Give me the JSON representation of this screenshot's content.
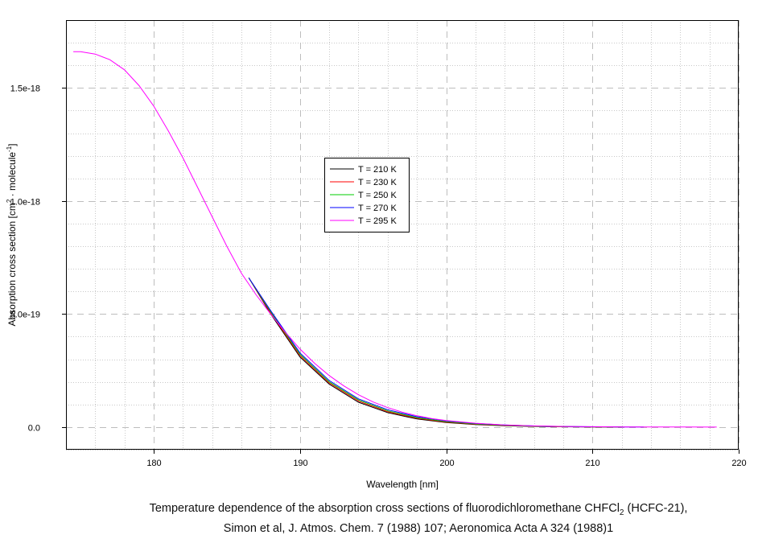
{
  "chart_data": {
    "type": "line",
    "xlabel": "Wavelength [nm]",
    "ylabel_parts": [
      "Absorption cross section [cm",
      "2",
      " · molecule",
      "-1",
      "]"
    ],
    "xlim": [
      174,
      220
    ],
    "ylim": [
      -1e-19,
      1.8e-18
    ],
    "x_ticks": [
      180,
      190,
      200,
      210,
      220
    ],
    "x_tick_labels": [
      "180",
      "190",
      "200",
      "210",
      "220"
    ],
    "y_ticks": [
      0,
      5e-19,
      1e-18,
      1.5e-18
    ],
    "y_tick_labels": [
      "0.0",
      "5.0e-19",
      "1.0e-18",
      "1.5e-18"
    ],
    "grid": true,
    "legend_placement": "center",
    "series": [
      {
        "name": "T = 210 K",
        "color": "#000000",
        "x": [
          186.5,
          188,
          190,
          192,
          194,
          196,
          198,
          200,
          202,
          204,
          206,
          208,
          210,
          212
        ],
        "y": [
          6.6e-19,
          5e-19,
          3.1e-19,
          1.9e-19,
          1.1e-19,
          6.4e-20,
          3.6e-20,
          2e-20,
          1.1e-20,
          6e-21,
          3e-21,
          1.5e-21,
          8e-22,
          3e-22
        ]
      },
      {
        "name": "T = 230 K",
        "color": "#ff0000",
        "x": [
          186.5,
          188,
          190,
          192,
          194,
          196,
          198,
          200,
          202,
          204,
          206,
          208,
          210,
          212
        ],
        "y": [
          6.6e-19,
          5.05e-19,
          3.16e-19,
          1.95e-19,
          1.15e-19,
          6.8e-20,
          3.9e-20,
          2.2e-20,
          1.25e-20,
          7e-21,
          3.6e-21,
          1.8e-21,
          1e-21,
          4e-22
        ]
      },
      {
        "name": "T = 250 K",
        "color": "#00cc00",
        "x": [
          186.5,
          188,
          190,
          192,
          194,
          196,
          198,
          200,
          202,
          204,
          206,
          208,
          210,
          212
        ],
        "y": [
          6.6e-19,
          5.1e-19,
          3.22e-19,
          2e-19,
          1.2e-19,
          7.2e-20,
          4.2e-20,
          2.4e-20,
          1.4e-20,
          8e-21,
          4.3e-21,
          2.2e-21,
          1.2e-21,
          5e-22
        ]
      },
      {
        "name": "T = 270 K",
        "color": "#0000ff",
        "x": [
          186.5,
          188,
          190,
          192,
          194,
          196,
          198,
          200,
          202,
          204,
          206,
          208,
          210,
          212,
          213.5
        ],
        "y": [
          6.6e-19,
          5.15e-19,
          3.28e-19,
          2.06e-19,
          1.25e-19,
          7.7e-20,
          4.6e-20,
          2.7e-20,
          1.6e-20,
          9.2e-21,
          5e-21,
          2.7e-21,
          1.4e-21,
          6e-22,
          3e-22
        ]
      },
      {
        "name": "T = 295 K",
        "color": "#ff00ff",
        "x": [
          174.5,
          175,
          176,
          177,
          178,
          179,
          180,
          181,
          182,
          183,
          184,
          185,
          186,
          187,
          188,
          189,
          190,
          191,
          192,
          193,
          194,
          195,
          196,
          197,
          198,
          199,
          200,
          202,
          204,
          206,
          208,
          210,
          212,
          214,
          216,
          218.5
        ],
        "y": [
          1.66e-18,
          1.66e-18,
          1.65e-18,
          1.625e-18,
          1.58e-18,
          1.51e-18,
          1.42e-18,
          1.31e-18,
          1.19e-18,
          1.06e-18,
          9.3e-19,
          8e-19,
          6.8e-19,
          5.85e-19,
          5e-19,
          4.2e-19,
          3.45e-19,
          2.82e-19,
          2.28e-19,
          1.82e-19,
          1.43e-19,
          1.11e-19,
          8.6e-20,
          6.6e-20,
          5e-20,
          3.8e-20,
          2.9e-20,
          1.7e-20,
          9.6e-21,
          5.4e-21,
          3e-21,
          1.6e-21,
          8e-22,
          4e-22,
          2e-22,
          1e-22
        ]
      }
    ]
  },
  "caption": {
    "line1_pre": "Temperature dependence of the absorption cross sections of fluorodichloromethane CHFCl",
    "line1_sub": "2",
    "line1_post": " (HCFC-21),",
    "line2": "Simon et al, J. Atmos. Chem. 7 (1988) 107; Aeronomica Acta A 324 (1988)1"
  }
}
